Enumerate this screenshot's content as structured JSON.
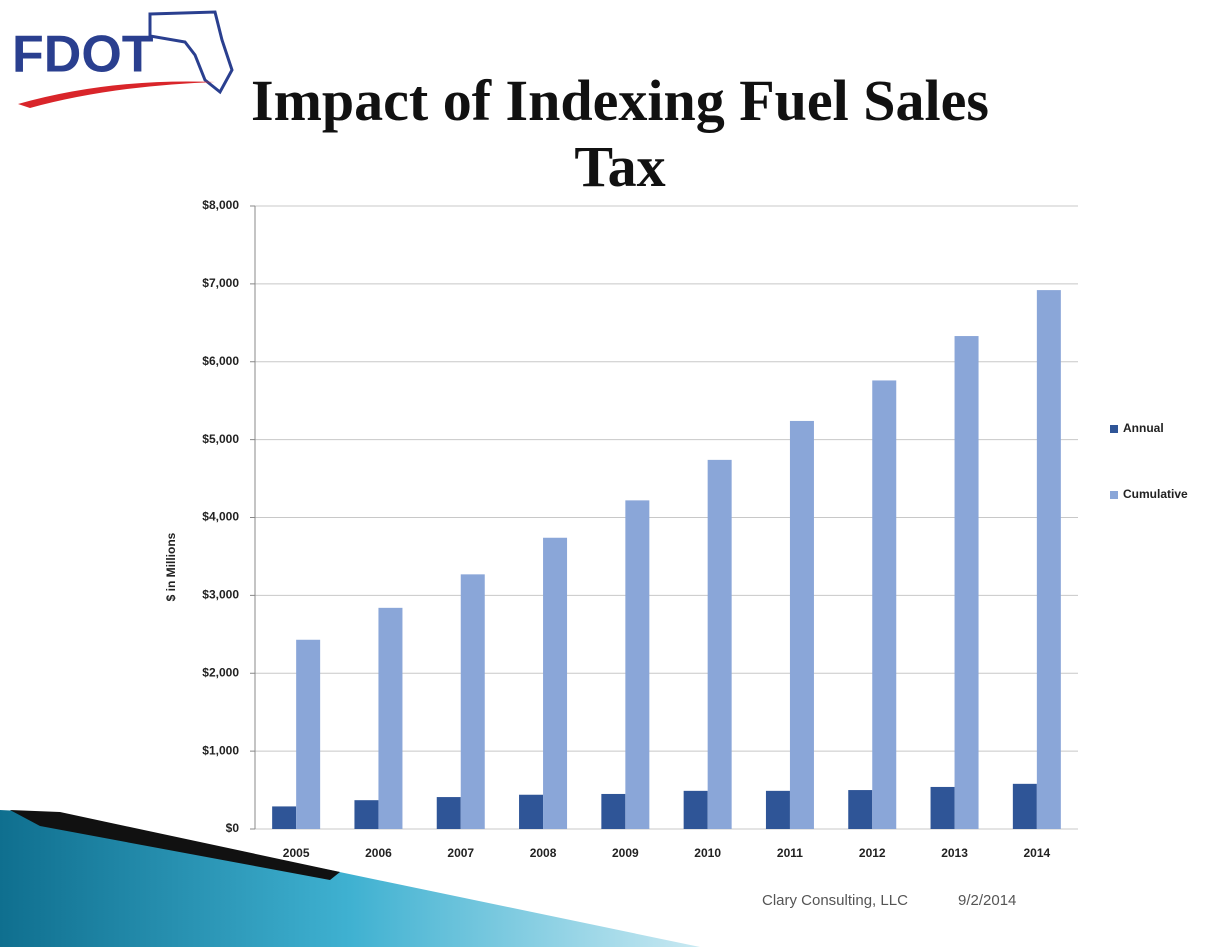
{
  "logo": "FDOT",
  "footer": {
    "source": "Clary Consulting, LLC",
    "date": "9/2/2014"
  },
  "chart_data": {
    "type": "bar",
    "title": "Impact of Indexing Fuel Sales Tax",
    "y_label": "$ in Millions",
    "categories": [
      "2005",
      "2006",
      "2007",
      "2008",
      "2009",
      "2010",
      "2011",
      "2012",
      "2013",
      "2014"
    ],
    "series": [
      {
        "name": "Annual",
        "color": "#2f5597",
        "values": [
          290,
          370,
          410,
          440,
          450,
          490,
          490,
          500,
          540,
          580
        ]
      },
      {
        "name": "Cumulative",
        "color": "#8aa6d8",
        "values": [
          2430,
          2840,
          3270,
          3740,
          4220,
          4740,
          5240,
          5760,
          6330,
          6920
        ]
      }
    ],
    "ylim": [
      0,
      8000
    ],
    "yticks": [
      {
        "value": 0,
        "label": "$0"
      },
      {
        "value": 1000,
        "label": "$1,000"
      },
      {
        "value": 2000,
        "label": "$2,000"
      },
      {
        "value": 3000,
        "label": "$3,000"
      },
      {
        "value": 4000,
        "label": "$4,000"
      },
      {
        "value": 5000,
        "label": "$5,000"
      },
      {
        "value": 6000,
        "label": "$6,000"
      },
      {
        "value": 7000,
        "label": "$7,000"
      },
      {
        "value": 8000,
        "label": "$8,000"
      }
    ],
    "grid": true,
    "legend": "right"
  }
}
